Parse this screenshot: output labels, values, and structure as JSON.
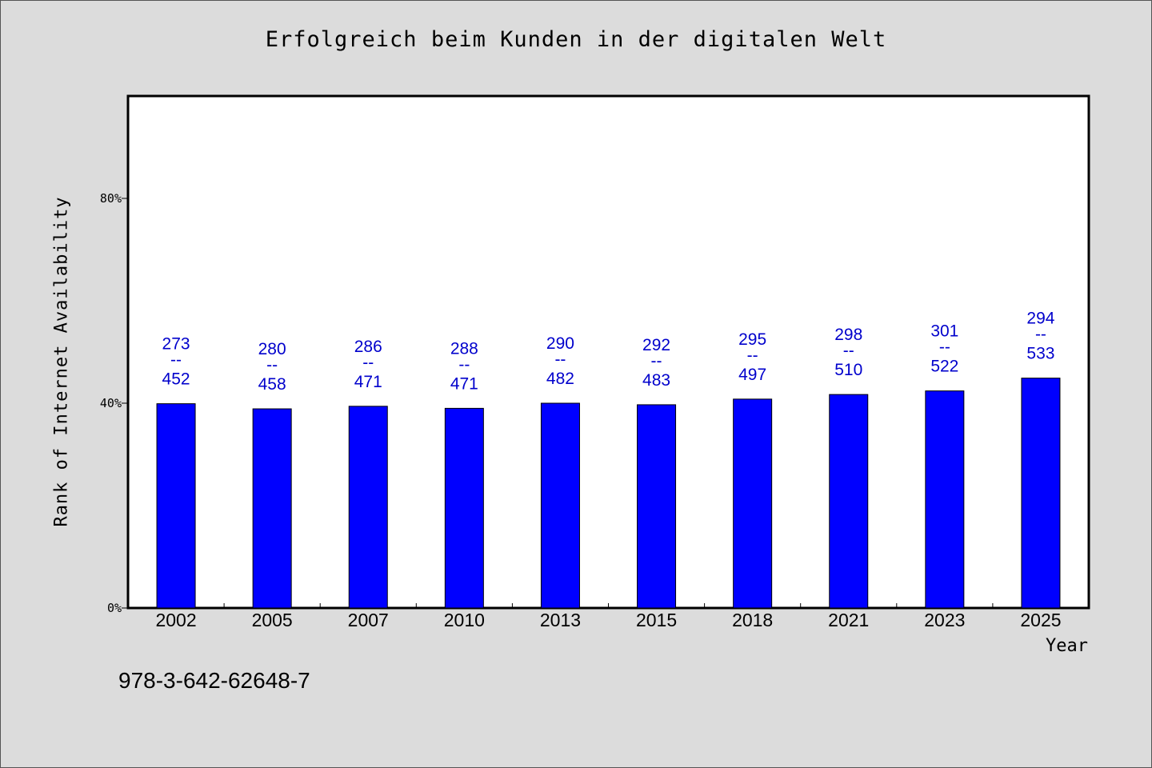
{
  "chart_data": {
    "type": "bar",
    "title": "Erfolgreich beim Kunden in der digitalen Welt",
    "xlabel": "Year",
    "ylabel": "Rank of Internet Availability",
    "categories": [
      "2002",
      "2005",
      "2007",
      "2010",
      "2013",
      "2015",
      "2018",
      "2021",
      "2023",
      "2025"
    ],
    "values": [
      39.9,
      38.9,
      39.4,
      39.0,
      40.0,
      39.7,
      40.8,
      41.7,
      42.4,
      44.9
    ],
    "bar_labels": [
      {
        "top": "273",
        "sep": "--",
        "bottom": "452"
      },
      {
        "top": "280",
        "sep": "--",
        "bottom": "458"
      },
      {
        "top": "286",
        "sep": "--",
        "bottom": "471"
      },
      {
        "top": "288",
        "sep": "--",
        "bottom": "471"
      },
      {
        "top": "290",
        "sep": "--",
        "bottom": "482"
      },
      {
        "top": "292",
        "sep": "--",
        "bottom": "483"
      },
      {
        "top": "295",
        "sep": "--",
        "bottom": "497"
      },
      {
        "top": "298",
        "sep": "--",
        "bottom": "510"
      },
      {
        "top": "301",
        "sep": "--",
        "bottom": "522"
      },
      {
        "top": "294",
        "sep": "--",
        "bottom": "533"
      }
    ],
    "ylim": [
      0,
      100
    ],
    "yticks": [
      0,
      40,
      80
    ],
    "ytick_labels": [
      "0%",
      "40%",
      "80%"
    ],
    "grid": false,
    "bar_color": "#0000ff",
    "label_color": "#0000cc"
  },
  "footer_text": "978-3-642-62648-7"
}
